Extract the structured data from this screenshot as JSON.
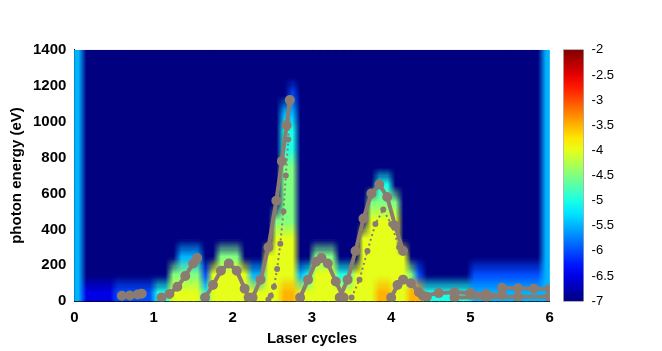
{
  "chart_data": {
    "type": "heatmap",
    "xlabel": "Laser cycles",
    "ylabel": "photon energy (eV)",
    "xlim": [
      0,
      6
    ],
    "xticks": [
      0,
      1,
      2,
      3,
      4,
      5,
      6
    ],
    "ylim": [
      0,
      1400
    ],
    "yticks": [
      0,
      200,
      400,
      600,
      800,
      1000,
      1200,
      1400
    ],
    "grid": false,
    "heatmap": {
      "xbins": [
        0,
        0.1,
        0.2,
        0.3,
        0.4,
        0.5,
        0.6,
        0.7,
        0.8,
        0.9,
        1,
        1.1,
        1.2,
        1.3,
        1.4,
        1.5,
        1.6,
        1.7,
        1.8,
        1.9,
        2,
        2.1,
        2.2,
        2.3,
        2.4,
        2.5,
        2.6,
        2.7,
        2.8,
        2.9,
        3,
        3.1,
        3.2,
        3.3,
        3.4,
        3.5,
        3.6,
        3.7,
        3.8,
        3.9,
        4,
        4.1,
        4.2,
        4.3,
        4.4,
        4.5,
        4.6,
        4.7,
        4.8,
        4.9,
        5,
        5.1,
        5.2,
        5.3,
        5.4,
        5.5,
        5.6,
        5.7,
        5.8,
        5.9,
        6
      ],
      "ybins": [
        0,
        100,
        200,
        300,
        400,
        500,
        600,
        700,
        800,
        900,
        1000,
        1100,
        1200,
        1300,
        1400
      ],
      "z": [
        [
          -5.5,
          -6.5,
          -6.5,
          -6.5,
          -6.5,
          -6,
          -6,
          -6,
          -6,
          -6,
          -5,
          -5,
          -4,
          -4,
          -4,
          -4,
          -5,
          -4,
          -4,
          -4,
          -4,
          -4,
          -4,
          -4,
          -4,
          -4,
          -3.5,
          -3.5,
          -4,
          -4,
          -4,
          -4,
          -4,
          -4,
          -4,
          -4,
          -4,
          -4,
          -3.5,
          -3.5,
          -4,
          -4,
          -3.5,
          -3.5,
          -5,
          -5,
          -5,
          -5,
          -5,
          -5,
          -5.5,
          -5.5,
          -5.5,
          -5.5,
          -5.5,
          -5.5,
          -5.5,
          -5.5,
          -5.5,
          -5.5
        ],
        [
          -5.5,
          -7,
          -7,
          -7,
          -7,
          -7,
          -7,
          -7,
          -7,
          -7,
          -7,
          -7,
          -4.5,
          -4.5,
          -4.5,
          -4.5,
          -6,
          -4,
          -4,
          -4,
          -4,
          -4,
          -5.5,
          -5.5,
          -4,
          -4,
          -4,
          -4,
          -5.5,
          -5,
          -4,
          -4,
          -4,
          -5,
          -5,
          -4,
          -4,
          -4,
          -4,
          -4,
          -4,
          -4,
          -4.5,
          -6,
          -7,
          -7,
          -7,
          -7,
          -7,
          -7,
          -6,
          -6,
          -6,
          -6,
          -6,
          -6,
          -6,
          -6,
          -6,
          -5.5
        ],
        [
          -5.5,
          -7,
          -7,
          -7,
          -7,
          -7,
          -7,
          -7,
          -7,
          -7,
          -7,
          -7,
          -7,
          -5.5,
          -5.5,
          -5.5,
          -7,
          -7,
          -4.5,
          -4.5,
          -4.5,
          -7,
          -7,
          -7,
          -4,
          -4,
          -4,
          -4,
          -7,
          -7,
          -4.5,
          -4.5,
          -4.5,
          -7,
          -7,
          -7,
          -4,
          -4,
          -4,
          -4,
          -4,
          -4,
          -7,
          -7,
          -7,
          -7,
          -7,
          -7,
          -7,
          -7,
          -7,
          -7,
          -7,
          -7,
          -7,
          -7,
          -7,
          -7,
          -7,
          -5.5
        ],
        [
          -5.5,
          -7,
          -7,
          -7,
          -7,
          -7,
          -7,
          -7,
          -7,
          -7,
          -7,
          -7,
          -7,
          -7,
          -7,
          -7,
          -7,
          -7,
          -7,
          -7,
          -7,
          -7,
          -7,
          -7,
          -7,
          -4,
          -4,
          -4,
          -7,
          -7,
          -7,
          -7,
          -7,
          -7,
          -7,
          -7,
          -4,
          -4,
          -4,
          -4,
          -4,
          -7,
          -7,
          -7,
          -7,
          -7,
          -7,
          -7,
          -7,
          -7,
          -7,
          -7,
          -7,
          -7,
          -7,
          -7,
          -7,
          -7,
          -7,
          -5.5
        ],
        [
          -5.5,
          -7,
          -7,
          -7,
          -7,
          -7,
          -7,
          -7,
          -7,
          -7,
          -7,
          -7,
          -7,
          -7,
          -7,
          -7,
          -7,
          -7,
          -7,
          -7,
          -7,
          -7,
          -7,
          -7,
          -7,
          -4.5,
          -4.5,
          -4.5,
          -7,
          -7,
          -7,
          -7,
          -7,
          -7,
          -7,
          -7,
          -7,
          -4,
          -4,
          -4,
          -4,
          -7,
          -7,
          -7,
          -7,
          -7,
          -7,
          -7,
          -7,
          -7,
          -7,
          -7,
          -7,
          -7,
          -7,
          -7,
          -7,
          -7,
          -7,
          -5.5
        ],
        [
          -5.5,
          -7,
          -7,
          -7,
          -7,
          -7,
          -7,
          -7,
          -7,
          -7,
          -7,
          -7,
          -7,
          -7,
          -7,
          -7,
          -7,
          -7,
          -7,
          -7,
          -7,
          -7,
          -7,
          -7,
          -7,
          -7,
          -4.5,
          -4.5,
          -7,
          -7,
          -7,
          -7,
          -7,
          -7,
          -7,
          -7,
          -7,
          -4.5,
          -4.5,
          -4.5,
          -4.5,
          -7,
          -7,
          -7,
          -7,
          -7,
          -7,
          -7,
          -7,
          -7,
          -7,
          -7,
          -7,
          -7,
          -7,
          -7,
          -7,
          -7,
          -7,
          -5.5
        ],
        [
          -5.5,
          -7,
          -7,
          -7,
          -7,
          -7,
          -7,
          -7,
          -7,
          -7,
          -7,
          -7,
          -7,
          -7,
          -7,
          -7,
          -7,
          -7,
          -7,
          -7,
          -7,
          -7,
          -7,
          -7,
          -7,
          -7,
          -4.5,
          -4.5,
          -7,
          -7,
          -7,
          -7,
          -7,
          -7,
          -7,
          -7,
          -7,
          -7,
          -5,
          -5,
          -7,
          -7,
          -7,
          -7,
          -7,
          -7,
          -7,
          -7,
          -7,
          -7,
          -7,
          -7,
          -7,
          -7,
          -7,
          -7,
          -7,
          -7,
          -7,
          -5.5
        ],
        [
          -5.5,
          -7,
          -7,
          -7,
          -7,
          -7,
          -7,
          -7,
          -7,
          -7,
          -7,
          -7,
          -7,
          -7,
          -7,
          -7,
          -7,
          -7,
          -7,
          -7,
          -7,
          -7,
          -7,
          -7,
          -7,
          -7,
          -4.5,
          -4.5,
          -7,
          -7,
          -7,
          -7,
          -7,
          -7,
          -7,
          -7,
          -7,
          -7,
          -7,
          -7,
          -7,
          -7,
          -7,
          -7,
          -7,
          -7,
          -7,
          -7,
          -7,
          -7,
          -7,
          -7,
          -7,
          -7,
          -7,
          -7,
          -7,
          -7,
          -7,
          -5.5
        ],
        [
          -5.5,
          -7,
          -7,
          -7,
          -7,
          -7,
          -7,
          -7,
          -7,
          -7,
          -7,
          -7,
          -7,
          -7,
          -7,
          -7,
          -7,
          -7,
          -7,
          -7,
          -7,
          -7,
          -7,
          -7,
          -7,
          -7,
          -5,
          -5,
          -7,
          -7,
          -7,
          -7,
          -7,
          -7,
          -7,
          -7,
          -7,
          -7,
          -7,
          -7,
          -7,
          -7,
          -7,
          -7,
          -7,
          -7,
          -7,
          -7,
          -7,
          -7,
          -7,
          -7,
          -7,
          -7,
          -7,
          -7,
          -7,
          -7,
          -7,
          -5.5
        ],
        [
          -5.5,
          -7,
          -7,
          -7,
          -7,
          -7,
          -7,
          -7,
          -7,
          -7,
          -7,
          -7,
          -7,
          -7,
          -7,
          -7,
          -7,
          -7,
          -7,
          -7,
          -7,
          -7,
          -7,
          -7,
          -7,
          -7,
          -5,
          -5,
          -7,
          -7,
          -7,
          -7,
          -7,
          -7,
          -7,
          -7,
          -7,
          -7,
          -7,
          -7,
          -7,
          -7,
          -7,
          -7,
          -7,
          -7,
          -7,
          -7,
          -7,
          -7,
          -7,
          -7,
          -7,
          -7,
          -7,
          -7,
          -7,
          -7,
          -7,
          -5.5
        ],
        [
          -5.5,
          -7,
          -7,
          -7,
          -7,
          -7,
          -7,
          -7,
          -7,
          -7,
          -7,
          -7,
          -7,
          -7,
          -7,
          -7,
          -7,
          -7,
          -7,
          -7,
          -7,
          -7,
          -7,
          -7,
          -7,
          -7,
          -5.5,
          -5.5,
          -7,
          -7,
          -7,
          -7,
          -7,
          -7,
          -7,
          -7,
          -7,
          -7,
          -7,
          -7,
          -7,
          -7,
          -7,
          -7,
          -7,
          -7,
          -7,
          -7,
          -7,
          -7,
          -7,
          -7,
          -7,
          -7,
          -7,
          -7,
          -7,
          -7,
          -7,
          -5.5
        ],
        [
          -5.5,
          -7,
          -7,
          -7,
          -7,
          -7,
          -7,
          -7,
          -7,
          -7,
          -7,
          -7,
          -7,
          -7,
          -7,
          -7,
          -7,
          -7,
          -7,
          -7,
          -7,
          -7,
          -7,
          -7,
          -7,
          -7,
          -7,
          -6,
          -7,
          -7,
          -7,
          -7,
          -7,
          -7,
          -7,
          -7,
          -7,
          -7,
          -7,
          -7,
          -7,
          -7,
          -7,
          -7,
          -7,
          -7,
          -7,
          -7,
          -7,
          -7,
          -7,
          -7,
          -7,
          -7,
          -7,
          -7,
          -7,
          -7,
          -7,
          -5.5
        ],
        [
          -5.5,
          -7,
          -7,
          -7,
          -7,
          -7,
          -7,
          -7,
          -7,
          -7,
          -7,
          -7,
          -7,
          -7,
          -7,
          -7,
          -7,
          -7,
          -7,
          -7,
          -7,
          -7,
          -7,
          -7,
          -7,
          -7,
          -7,
          -7,
          -7,
          -7,
          -7,
          -7,
          -7,
          -7,
          -7,
          -7,
          -7,
          -7,
          -7,
          -7,
          -7,
          -7,
          -7,
          -7,
          -7,
          -7,
          -7,
          -7,
          -7,
          -7,
          -7,
          -7,
          -7,
          -7,
          -7,
          -7,
          -7,
          -7,
          -7,
          -5.5
        ],
        [
          -5.5,
          -7,
          -7,
          -7,
          -7,
          -7,
          -7,
          -7,
          -7,
          -7,
          -7,
          -7,
          -7,
          -7,
          -7,
          -7,
          -7,
          -7,
          -7,
          -7,
          -7,
          -7,
          -7,
          -7,
          -7,
          -7,
          -7,
          -7,
          -7,
          -7,
          -7,
          -7,
          -7,
          -7,
          -7,
          -7,
          -7,
          -7,
          -7,
          -7,
          -7,
          -7,
          -7,
          -7,
          -7,
          -7,
          -7,
          -7,
          -7,
          -7,
          -7,
          -7,
          -7,
          -7,
          -7,
          -7,
          -7,
          -7,
          -7,
          -5.5
        ]
      ]
    },
    "colorbar": {
      "range": [
        -7,
        -2
      ],
      "ticks": [
        -2,
        -2.5,
        -3,
        -3.5,
        -4,
        -4.5,
        -5,
        -5.5,
        -6,
        -6.5,
        -7
      ]
    },
    "series": [
      {
        "type": "scatter",
        "color": "#8c7b70",
        "marker": "circle",
        "line_style": "solid",
        "x": [
          0.6,
          0.7,
          0.8,
          0.85
        ],
        "values": [
          30,
          32,
          38,
          42
        ]
      },
      {
        "type": "scatter",
        "color": "#8c7b70",
        "marker": "circle",
        "line_style": "solid",
        "x": [
          1.1,
          1.2,
          1.3,
          1.4,
          1.5,
          1.55
        ],
        "values": [
          20,
          40,
          80,
          140,
          210,
          240
        ]
      },
      {
        "type": "scatter",
        "color": "#8c7b70",
        "marker": "circle",
        "line_style": "solid",
        "x": [
          1.65,
          1.75,
          1.85,
          1.95,
          2.05,
          2.15,
          2.2
        ],
        "values": [
          20,
          90,
          170,
          210,
          170,
          70,
          20
        ]
      },
      {
        "type": "scatter",
        "color": "#8c7b70",
        "marker": "circle",
        "line_style": "solid",
        "x": [
          2.25,
          2.35,
          2.45,
          2.55,
          2.62,
          2.68,
          2.72
        ],
        "values": [
          20,
          120,
          300,
          560,
          780,
          980,
          1120
        ]
      },
      {
        "type": "scatter",
        "color": "#8c7b70",
        "marker": "circle",
        "line_style": "dotted",
        "x": [
          2.72,
          2.7,
          2.67,
          2.64,
          2.6,
          2.56,
          2.52,
          2.48,
          2.45
        ],
        "values": [
          1100,
          900,
          700,
          500,
          320,
          180,
          80,
          30,
          10
        ]
      },
      {
        "type": "scatter",
        "color": "#8c7b70",
        "marker": "circle",
        "line_style": "solid",
        "x": [
          2.85,
          2.95,
          3.05,
          3.12,
          3.2,
          3.3,
          3.4
        ],
        "values": [
          20,
          120,
          220,
          240,
          210,
          110,
          20
        ]
      },
      {
        "type": "scatter",
        "color": "#8c7b70",
        "marker": "circle",
        "line_style": "solid",
        "x": [
          3.35,
          3.45,
          3.55,
          3.65,
          3.75,
          3.85,
          3.95,
          4.05,
          4.15
        ],
        "values": [
          20,
          120,
          280,
          460,
          600,
          650,
          580,
          420,
          280
        ]
      },
      {
        "type": "scatter",
        "color": "#8c7b70",
        "marker": "circle",
        "line_style": "dotted",
        "x": [
          3.5,
          3.6,
          3.7,
          3.8,
          3.9,
          4.0,
          4.1
        ],
        "values": [
          20,
          120,
          280,
          430,
          510,
          430,
          300
        ]
      },
      {
        "type": "scatter",
        "color": "#8c7b70",
        "marker": "circle",
        "line_style": "solid",
        "x": [
          4.0,
          4.08,
          4.15,
          4.25,
          4.35,
          4.45
        ],
        "values": [
          20,
          90,
          120,
          100,
          50,
          25
        ]
      },
      {
        "type": "scatter",
        "color": "#8c7b70",
        "marker": "circle",
        "line_style": "solid",
        "x": [
          4.4,
          4.6,
          4.8,
          5.0,
          5.2,
          5.4
        ],
        "values": [
          30,
          45,
          50,
          45,
          40,
          35
        ]
      },
      {
        "type": "scatter",
        "color": "#8c7b70",
        "marker": "circle",
        "line_style": "solid",
        "x": [
          5.4,
          5.6,
          5.8,
          6.0
        ],
        "values": [
          75,
          72,
          70,
          68
        ]
      },
      {
        "type": "scatter",
        "color": "#8c7b70",
        "marker": "circle",
        "line_style": "solid",
        "x": [
          4.8,
          5.2,
          5.6,
          6.0
        ],
        "values": [
          20,
          22,
          25,
          25
        ]
      }
    ]
  }
}
